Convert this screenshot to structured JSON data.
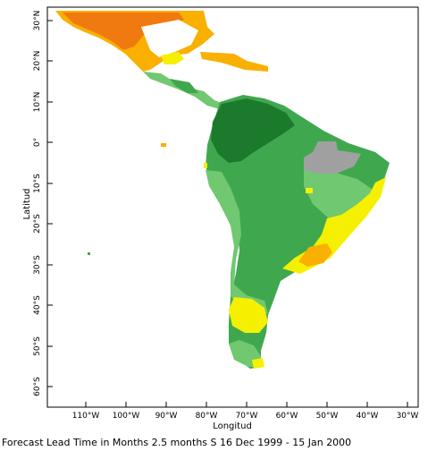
{
  "map": {
    "x_axis_title": "Longitud",
    "y_axis_title": "Latitud",
    "lon_ticks": [
      "110°W",
      "100°W",
      "90°W",
      "80°W",
      "70°W",
      "60°W",
      "50°W",
      "40°W",
      "30°W"
    ],
    "lat_ticks": [
      "30°N",
      "20°N",
      "10°N",
      "0°",
      "10°S",
      "20°S",
      "30°S",
      "40°S",
      "50°S",
      "60°S"
    ],
    "caption": "Forecast Lead Time in Months 2.5 months S 16 Dec 1999 - 15 Jan 2000",
    "colors": {
      "dry_orange": "#f07a10",
      "dry_light_orange": "#f9b000",
      "yellow": "#f5f000",
      "light_green": "#70c870",
      "mid_green": "#3fa84f",
      "dark_green": "#1c7a2c",
      "gray": "#a0a0a0"
    }
  }
}
